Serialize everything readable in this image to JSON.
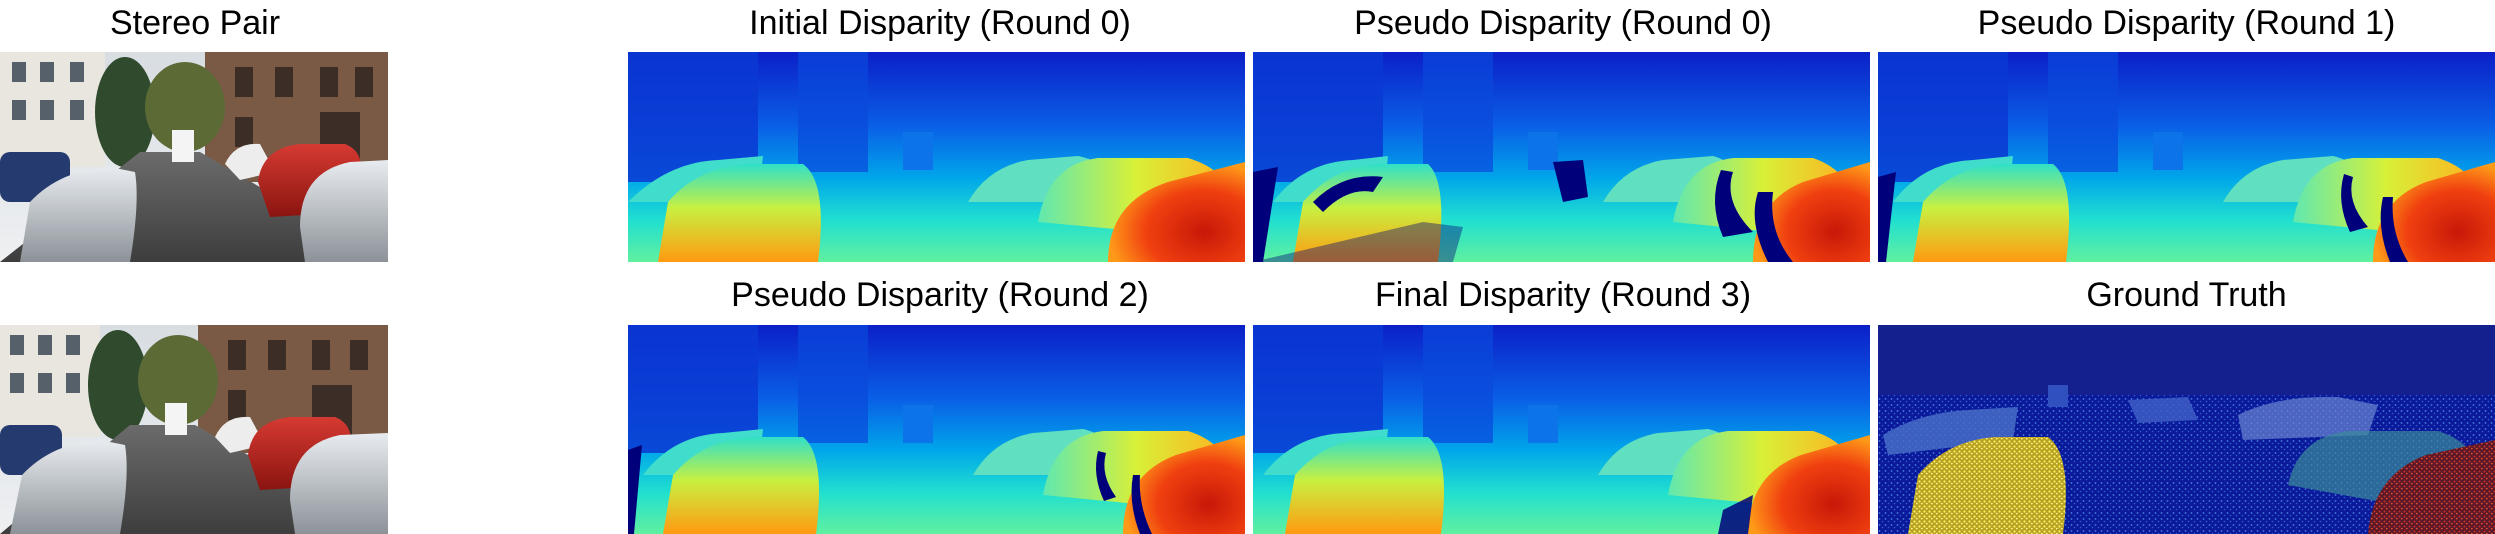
{
  "figure": {
    "row1": {
      "stereo_pair": "Stereo Pair",
      "initial": "Initial Disparity (Round 0)",
      "pseudo0": "Pseudo Disparity (Round 0)",
      "pseudo1": "Pseudo Disparity (Round 1)"
    },
    "row2": {
      "pseudo2": "Pseudo Disparity (Round 2)",
      "final": "Final Disparity (Round 3)",
      "ground_truth": "Ground Truth"
    }
  },
  "colors": {
    "jet_far": "#0a1a9a",
    "jet_mid": "#00b4e6",
    "jet_near_yellow": "#f0e830",
    "jet_near_red": "#c81e0a",
    "invalid": "#00007a",
    "background": "#ffffff"
  }
}
